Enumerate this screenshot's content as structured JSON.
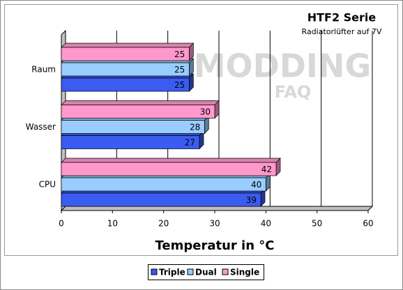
{
  "chart_data": {
    "type": "bar3d",
    "orientation": "horizontal",
    "title": "HTF2 Serie",
    "subtitle": "Radiatorlüfter auf 7V",
    "watermark": [
      "MODDING",
      "FAQ"
    ],
    "x_label": "Temperatur in °C",
    "categories": [
      "Raum",
      "Wasser",
      "CPU"
    ],
    "series": [
      {
        "name": "Triple",
        "color": "#3a5cf0",
        "values": [
          25,
          27,
          39
        ]
      },
      {
        "name": "Dual",
        "color": "#99ccff",
        "values": [
          25,
          28,
          40
        ]
      },
      {
        "name": "Single",
        "color": "#ff99cc",
        "values": [
          25,
          30,
          42
        ]
      }
    ],
    "xlim": [
      0,
      60
    ],
    "xticks": [
      0,
      10,
      20,
      30,
      40,
      50,
      60
    ],
    "grid": true,
    "legend": "bottom"
  }
}
